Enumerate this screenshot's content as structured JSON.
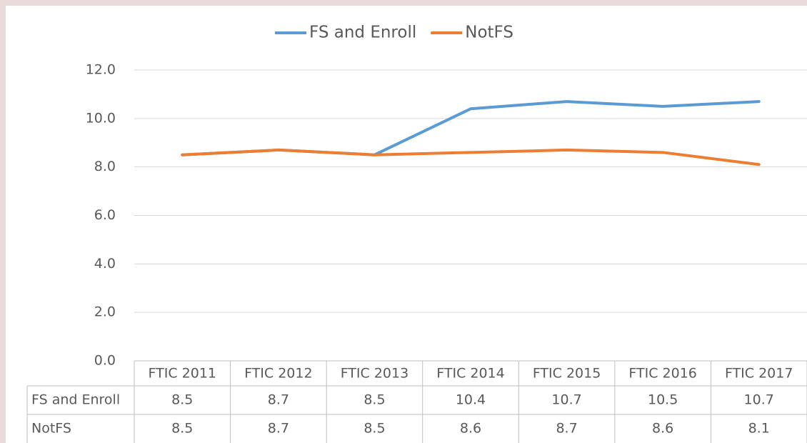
{
  "chart_data": {
    "type": "line",
    "categories": [
      "FTIC 2011",
      "FTIC 2012",
      "FTIC 2013",
      "FTIC 2014",
      "FTIC 2015",
      "FTIC 2016",
      "FTIC 2017"
    ],
    "series": [
      {
        "name": "FS and Enroll",
        "color": "#5b9bd5",
        "values": [
          8.5,
          8.7,
          8.5,
          10.4,
          10.7,
          10.5,
          10.7
        ]
      },
      {
        "name": "NotFS",
        "color": "#ed7d31",
        "values": [
          8.5,
          8.7,
          8.5,
          8.6,
          8.7,
          8.6,
          8.1
        ]
      }
    ],
    "ylim": [
      0,
      12
    ],
    "yticks": [
      {
        "value": 0,
        "label": "0.0"
      },
      {
        "value": 2,
        "label": "2.0"
      },
      {
        "value": 4,
        "label": "4.0"
      },
      {
        "value": 6,
        "label": "6.0"
      },
      {
        "value": 8,
        "label": "8.0"
      },
      {
        "value": 10,
        "label": "10.0"
      },
      {
        "value": 12,
        "label": "12.0"
      }
    ],
    "grid": true,
    "legend": "top",
    "data_table": true
  }
}
